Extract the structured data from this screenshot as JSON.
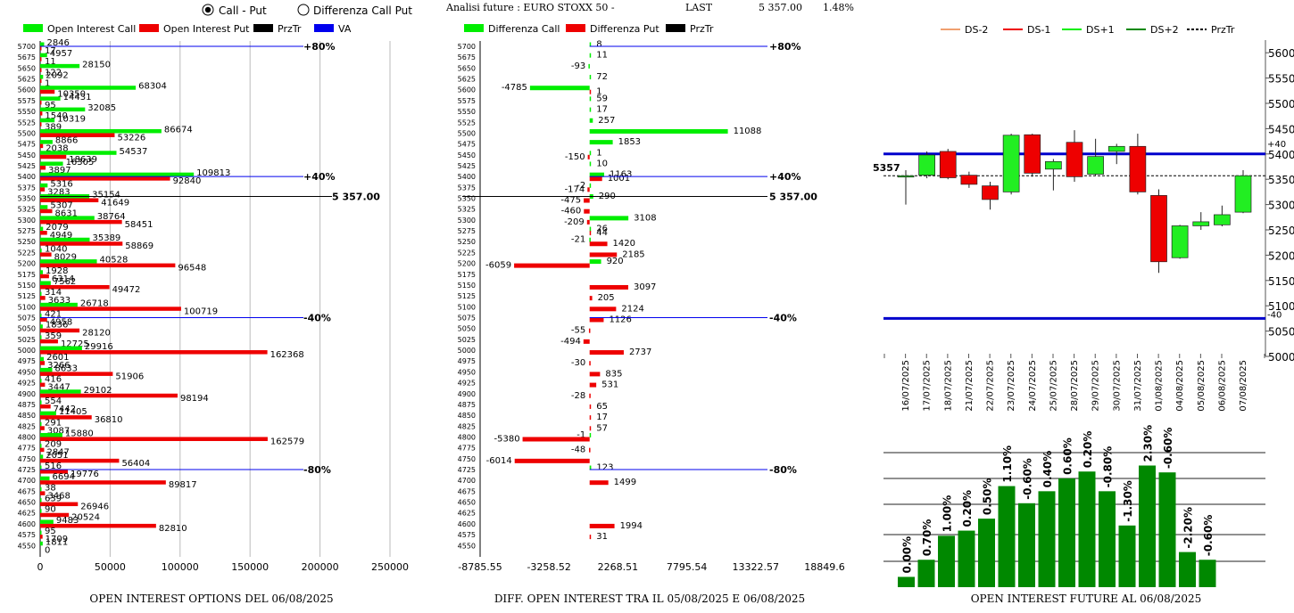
{
  "header": {
    "radio_call_put": "Call - Put",
    "radio_diff": "Differenza Call Put",
    "selected": "call_put",
    "analysis_label": "Analisi future : EURO STOXX 50 -",
    "last_label": "LAST",
    "last_value": "5 357.00",
    "change": "1.48%"
  },
  "colors": {
    "call": "#00ee00",
    "put": "#ee0000",
    "prztr": "#000000",
    "va": "#0000ee",
    "future_bar": "#008800"
  },
  "chart_data": [
    {
      "type": "bar",
      "orientation": "horizontal",
      "title": "OPEN INTEREST OPTIONS DEL 06/08/2025",
      "legend": [
        "Open Interest Call",
        "Open Interest Put",
        "PrzTr",
        "VA"
      ],
      "x_ticks": [
        "0",
        "50000",
        "100000",
        "150000",
        "200000",
        "250000"
      ],
      "xlim": [
        0,
        250000
      ],
      "strikes": [
        "5700",
        "5675",
        "5650",
        "5625",
        "5600",
        "5575",
        "5550",
        "5525",
        "5500",
        "5475",
        "5450",
        "5425",
        "5400",
        "5375",
        "5350",
        "5325",
        "5300",
        "5275",
        "5250",
        "5225",
        "5200",
        "5175",
        "5150",
        "5125",
        "5100",
        "5075",
        "5050",
        "5025",
        "5000",
        "4975",
        "4950",
        "4925",
        "4900",
        "4875",
        "4850",
        "4825",
        "4800",
        "4775",
        "4750",
        "4725",
        "4700",
        "4675",
        "4650",
        "4625",
        "4600",
        "4575",
        "4550"
      ],
      "series": [
        {
          "name": "Open Interest Call",
          "values": [
            2846,
            4957,
            28150,
            2092,
            68304,
            14431,
            32085,
            10319,
            86674,
            8866,
            54537,
            16305,
            109813,
            5316,
            35154,
            5307,
            38764,
            2079,
            35389,
            1040,
            40528,
            1928,
            7562,
            314,
            26718,
            421,
            1836,
            359,
            29916,
            2601,
            8633,
            416,
            29102,
            554,
            11405,
            291,
            15880,
            209,
            2051,
            516,
            6694,
            38,
            639,
            90,
            9483,
            95,
            1811
          ]
        },
        {
          "name": "Open Interest Put",
          "values": [
            17,
            11,
            122,
            1,
            10350,
            95,
            1540,
            389,
            53226,
            2038,
            18639,
            3897,
            92840,
            3283,
            41649,
            8631,
            58451,
            4949,
            58869,
            8029,
            96548,
            6314,
            49472,
            3633,
            100719,
            4958,
            28120,
            12725,
            162368,
            3266,
            51906,
            3447,
            98194,
            7442,
            36810,
            3087,
            162579,
            2847,
            56404,
            19776,
            89817,
            3468,
            26946,
            20524,
            82810,
            1709,
            0
          ]
        }
      ],
      "lines": [
        {
          "label": "+80%",
          "strike": 5700
        },
        {
          "label": "+40%",
          "strike": 5400
        },
        {
          "label": "5 357.00",
          "strike": 5350
        },
        {
          "label": "-40%",
          "strike": 5075
        },
        {
          "label": "-80%",
          "strike": 4725
        }
      ]
    },
    {
      "type": "bar",
      "orientation": "horizontal",
      "title": "DIFF. OPEN INTEREST TRA IL 05/08/2025 E 06/08/2025",
      "legend": [
        "Differenza Call",
        "Differenza Put",
        "PrzTr"
      ],
      "x_ticks": [
        "-8785.55",
        "-3258.52",
        "2268.51",
        "7795.54",
        "13322.57",
        "18849.6"
      ],
      "xlim": [
        -8785.55,
        18849.6
      ],
      "strikes": [
        "5700",
        "5675",
        "5650",
        "5625",
        "5600",
        "5575",
        "5550",
        "5525",
        "5500",
        "5475",
        "5450",
        "5425",
        "5400",
        "5375",
        "5350",
        "5325",
        "5300",
        "5275",
        "5250",
        "5225",
        "5200",
        "5175",
        "5150",
        "5125",
        "5100",
        "5075",
        "5050",
        "5025",
        "5000",
        "4975",
        "4950",
        "4925",
        "4900",
        "4875",
        "4850",
        "4825",
        "4800",
        "4775",
        "4750",
        "4725",
        "4700",
        "4675",
        "4650",
        "4625",
        "4600",
        "4575",
        "4550"
      ],
      "series": [
        {
          "name": "Differenza Call",
          "values": [
            8,
            11,
            -93,
            72,
            -4785,
            59,
            17,
            257,
            11088,
            1853,
            1,
            10,
            1163,
            -2,
            290,
            0,
            3108,
            26,
            -21,
            0,
            920,
            0,
            0,
            0,
            0,
            0,
            0,
            0,
            0,
            0,
            0,
            0,
            0,
            0,
            0,
            0,
            -1,
            0,
            0,
            123,
            0,
            0,
            0,
            0,
            0,
            0,
            0
          ]
        },
        {
          "name": "Differenza Put",
          "values": [
            0,
            0,
            0,
            0,
            1,
            0,
            0,
            0,
            0,
            0,
            -150,
            0,
            1001,
            -174,
            -475,
            -460,
            -209,
            44,
            1420,
            2185,
            -6059,
            0,
            3097,
            205,
            2124,
            1126,
            -55,
            -494,
            2737,
            -30,
            835,
            531,
            -28,
            65,
            17,
            57,
            -5380,
            -48,
            -6014,
            0,
            1499,
            0,
            0,
            0,
            1994,
            31,
            0
          ]
        }
      ],
      "lines": [
        {
          "label": "+80%",
          "strike": 5700
        },
        {
          "label": "+40%",
          "strike": 5400
        },
        {
          "label": "5 357.00",
          "strike": 5350
        },
        {
          "label": "-40%",
          "strike": 5075
        },
        {
          "label": "-80%",
          "strike": 4725
        }
      ]
    },
    {
      "type": "candlestick",
      "legend": [
        "DS-2",
        "DS-1",
        "DS+1",
        "DS+2",
        "PrzTr"
      ],
      "legend_colors": [
        "#f0a070",
        "#ee0000",
        "#00ee00",
        "#008800",
        "#000000"
      ],
      "y_ticks": [
        "5600",
        "5550",
        "5500",
        "5450",
        "5400",
        "5350",
        "5300",
        "5250",
        "5200",
        "5150",
        "5100",
        "5050",
        "5000"
      ],
      "ylim": [
        5000,
        5625
      ],
      "dates": [
        "16/07/2025",
        "17/07/2025",
        "18/07/2025",
        "21/07/2025",
        "22/07/2025",
        "23/07/2025",
        "24/07/2025",
        "25/07/2025",
        "28/07/2025",
        "29/07/2025",
        "30/07/2025",
        "31/07/2025",
        "01/08/2025",
        "04/08/2025",
        "05/08/2025",
        "06/08/2025",
        "07/08/2025"
      ],
      "candles": [
        {
          "o": 5357,
          "h": 5368,
          "l": 5300,
          "c": 5357
        },
        {
          "o": 5358,
          "h": 5405,
          "l": 5352,
          "c": 5398
        },
        {
          "o": 5405,
          "h": 5410,
          "l": 5350,
          "c": 5353
        },
        {
          "o": 5358,
          "h": 5365,
          "l": 5333,
          "c": 5340
        },
        {
          "o": 5337,
          "h": 5345,
          "l": 5290,
          "c": 5310
        },
        {
          "o": 5325,
          "h": 5440,
          "l": 5320,
          "c": 5437
        },
        {
          "o": 5438,
          "h": 5440,
          "l": 5355,
          "c": 5362
        },
        {
          "o": 5370,
          "h": 5390,
          "l": 5328,
          "c": 5385
        },
        {
          "o": 5423,
          "h": 5447,
          "l": 5345,
          "c": 5355
        },
        {
          "o": 5360,
          "h": 5430,
          "l": 5357,
          "c": 5395
        },
        {
          "o": 5405,
          "h": 5420,
          "l": 5380,
          "c": 5415
        },
        {
          "o": 5415,
          "h": 5440,
          "l": 5320,
          "c": 5325
        },
        {
          "o": 5318,
          "h": 5330,
          "l": 5165,
          "c": 5187
        },
        {
          "o": 5195,
          "h": 5260,
          "l": 5193,
          "c": 5258
        },
        {
          "o": 5258,
          "h": 5285,
          "l": 5250,
          "c": 5266
        },
        {
          "o": 5260,
          "h": 5298,
          "l": 5257,
          "c": 5280
        },
        {
          "o": 5285,
          "h": 5368,
          "l": 5283,
          "c": 5357
        }
      ],
      "lines": [
        {
          "label": "+40",
          "value": 5400
        },
        {
          "label": "-40",
          "value": 5075
        }
      ],
      "price_label": "5357",
      "price": 5357
    },
    {
      "type": "bar",
      "title": "OPEN INTEREST FUTURE AL 06/08/2025",
      "bar_labels": [
        "0.00%",
        "0.70%",
        "1.00%",
        "0.20%",
        "0.50%",
        "1.10%",
        "-0.60%",
        "0.40%",
        "0.60%",
        "0.20%",
        "-0.80%",
        "-1.30%",
        "2.30%",
        "-0.60%",
        "-2.20%",
        "-0.60%"
      ],
      "values": [
        12,
        32,
        60,
        66,
        80,
        118,
        98,
        112,
        127,
        135,
        112,
        72,
        142,
        134,
        41,
        32
      ]
    }
  ]
}
